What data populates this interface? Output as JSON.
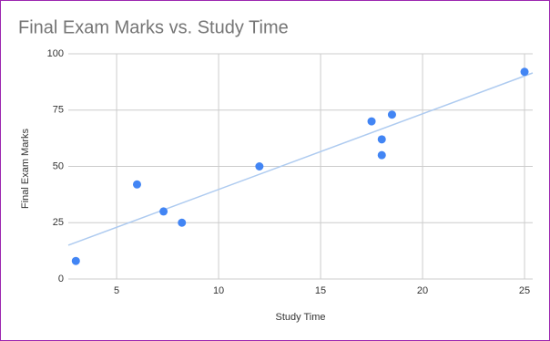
{
  "chart_data": {
    "type": "scatter",
    "title": "Final Exam Marks vs. Study Time",
    "x_label": "Study Time",
    "y_label": "Final Exam Marks",
    "series": [
      {
        "color": "#4285f4",
        "x": [
          3,
          6,
          7.3,
          8.2,
          12,
          17.5,
          18,
          18,
          18.5,
          25
        ],
        "values": [
          8,
          42,
          30,
          25,
          50,
          70,
          62,
          55,
          73,
          92
        ]
      }
    ],
    "trendline": {
      "color": "#aecbf0",
      "x": [
        2.63,
        25.4
      ],
      "y": [
        15,
        91.5
      ]
    },
    "xlim": [
      2.63,
      25.4
    ],
    "xticks": [
      5,
      10,
      15,
      20,
      25
    ],
    "ylim": [
      0,
      100
    ],
    "yticks": [
      0,
      25,
      50,
      75,
      100
    ],
    "grid": true
  }
}
